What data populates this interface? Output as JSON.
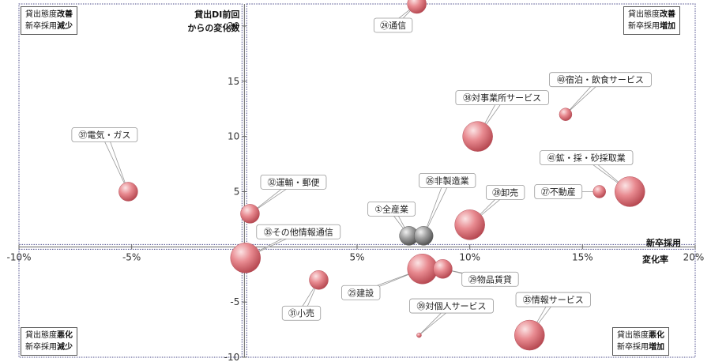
{
  "chart_data": {
    "type": "scatter",
    "subtype": "bubble",
    "xlim": [
      -0.1,
      0.2
    ],
    "ylim": [
      -10,
      22
    ],
    "x_ticks": [
      "-10%",
      "-5%",
      "0%",
      "5%",
      "10%",
      "15%",
      "20%"
    ],
    "y_ticks": [
      "-10",
      "-5",
      "0",
      "5",
      "10",
      "15",
      "20"
    ],
    "y_axis_label": [
      "貸出DI前回",
      "からの変化数"
    ],
    "x_axis_label": [
      "新卒採用",
      "変化率"
    ],
    "grid": false,
    "points": [
      {
        "label": "㉔通信",
        "x": 0.0765,
        "y": 22.0,
        "size": "medium",
        "color": "#e07a80"
      },
      {
        "label": "㊵宿泊・飲食サービス",
        "x": 0.1425,
        "y": 12.0,
        "size": "small",
        "color": "#e07a80"
      },
      {
        "label": "㊳対事業所サービス",
        "x": 0.1035,
        "y": 10.0,
        "size": "large",
        "color": "#e07a80"
      },
      {
        "label": "㊲電気・ガス",
        "x": -0.0515,
        "y": 5.0,
        "size": "medium",
        "color": "#e07a80"
      },
      {
        "label": "㊶鉱・採・砂採取業",
        "x": 0.171,
        "y": 5.0,
        "size": "large",
        "color": "#e07a80"
      },
      {
        "label": "㉗不動産",
        "x": 0.1575,
        "y": 5.0,
        "size": "small",
        "color": "#e07a80"
      },
      {
        "label": "㉜運輸・郵便",
        "x": 0.0025,
        "y": 3.0,
        "size": "medium",
        "color": "#e07a80"
      },
      {
        "label": "㉘卸売",
        "x": 0.1,
        "y": 2.0,
        "size": "large",
        "color": "#e07a80"
      },
      {
        "label": "①全産業",
        "x": 0.073,
        "y": 1.0,
        "size": "medium",
        "color": "#909090"
      },
      {
        "label": "㉖非製造業",
        "x": 0.0795,
        "y": 1.0,
        "size": "medium",
        "color": "#909090"
      },
      {
        "label": "㉟その他情報通信",
        "x": 0.0005,
        "y": -1.0,
        "size": "large",
        "color": "#e07a80"
      },
      {
        "label": "㉕建設",
        "x": 0.079,
        "y": -2.0,
        "size": "large",
        "color": "#e07a80"
      },
      {
        "label": "㉙物品賃貸",
        "x": 0.088,
        "y": -2.0,
        "size": "medium",
        "color": "#e07a80"
      },
      {
        "label": "㉛小売",
        "x": 0.033,
        "y": -3.0,
        "size": "medium",
        "color": "#e07a80"
      },
      {
        "label": "㊴対個人サービス",
        "x": 0.0775,
        "y": -8.0,
        "size": "tiny",
        "color": "#e07a80"
      },
      {
        "label": "㉟情報サービス",
        "x": 0.1265,
        "y": -8.0,
        "size": "large",
        "color": "#e07a80"
      }
    ],
    "quadrants": {
      "top_left": [
        "貸出態度",
        "改善",
        "新卒採用",
        "減少"
      ],
      "top_right": [
        "貸出態度",
        "改善",
        "新卒採用",
        "増加"
      ],
      "bottom_left": [
        "貸出態度",
        "悪化",
        "新卒採用",
        "減少"
      ],
      "bottom_right": [
        "貸出態度",
        "悪化",
        "新卒採用",
        "増加"
      ]
    }
  }
}
